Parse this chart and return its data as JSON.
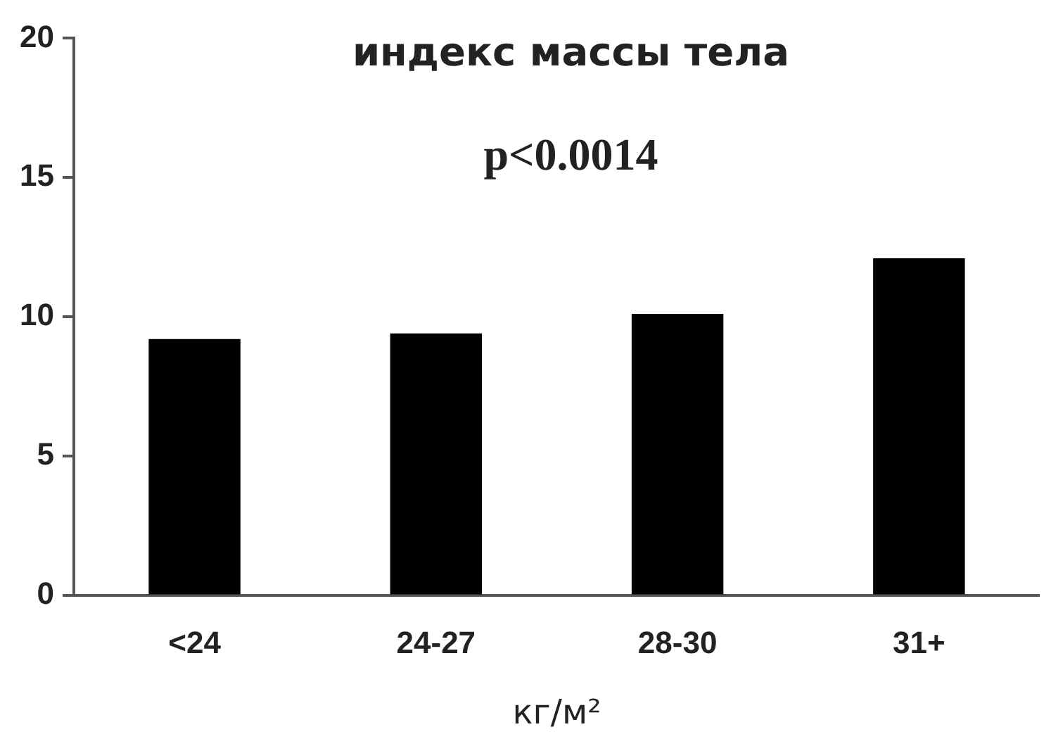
{
  "chart_data": {
    "type": "bar",
    "title": "индекс массы тела",
    "annotations": [
      "p<0.0014"
    ],
    "xlabel": "кг/м²",
    "categories": [
      "<24",
      "24-27",
      "28-30",
      "31+"
    ],
    "values": [
      9.2,
      9.4,
      10.1,
      12.1
    ],
    "color": "#000000",
    "ylim": [
      0,
      20
    ],
    "yticks": [
      0,
      5,
      10,
      15,
      20
    ],
    "grid": false,
    "legend": false
  }
}
